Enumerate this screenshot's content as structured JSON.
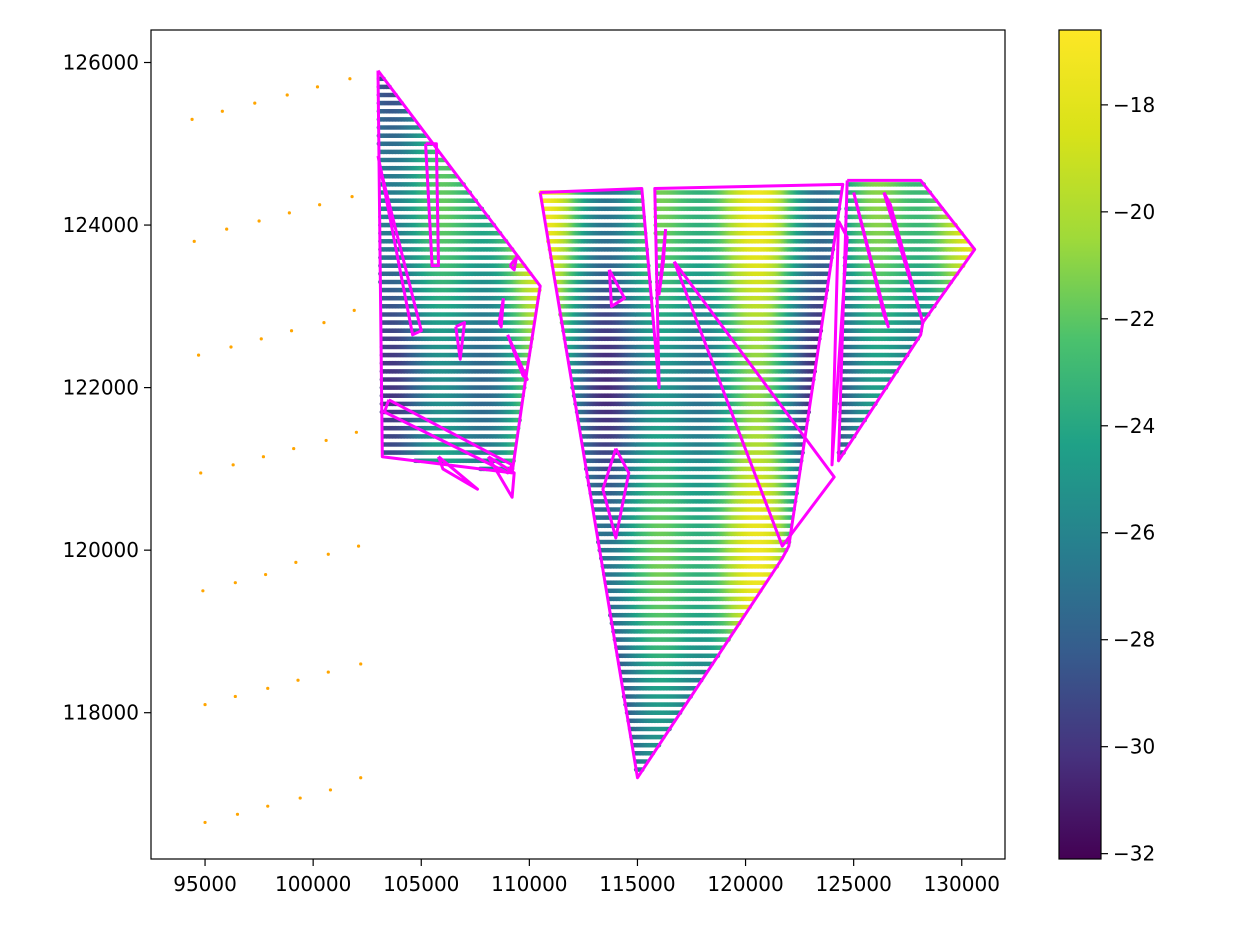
{
  "chart_data": {
    "type": "scatter",
    "title": "",
    "xlabel": "",
    "ylabel": "",
    "xlim": [
      92500,
      132000
    ],
    "ylim": [
      116200,
      126400
    ],
    "grid": false,
    "x_ticks": [
      95000,
      100000,
      105000,
      110000,
      115000,
      120000,
      125000,
      130000
    ],
    "x_tick_labels": [
      "95000",
      "100000",
      "105000",
      "110000",
      "115000",
      "120000",
      "125000",
      "130000"
    ],
    "y_ticks": [
      118000,
      120000,
      122000,
      124000,
      126000
    ],
    "y_tick_labels": [
      "118000",
      "120000",
      "122000",
      "124000",
      "126000"
    ],
    "colorbar": {
      "colormap": "viridis",
      "range": [
        -32.1,
        -16.6
      ],
      "ticks": [
        -32,
        -30,
        -28,
        -26,
        -24,
        -22,
        -20,
        -18
      ],
      "tick_labels": [
        "−32",
        "−30",
        "−28",
        "−26",
        "−24",
        "−22",
        "−20",
        "−18"
      ]
    },
    "series": [
      {
        "kind": "points",
        "color": "#ffa500",
        "rows": [
          [
            [
              94400,
              125300
            ],
            [
              95800,
              125400
            ],
            [
              97300,
              125500
            ],
            [
              98800,
              125600
            ],
            [
              100200,
              125700
            ],
            [
              101700,
              125800
            ]
          ],
          [
            [
              94500,
              123800
            ],
            [
              96000,
              123950
            ],
            [
              97500,
              124050
            ],
            [
              98900,
              124150
            ],
            [
              100300,
              124250
            ],
            [
              101800,
              124350
            ]
          ],
          [
            [
              94700,
              122400
            ],
            [
              96200,
              122500
            ],
            [
              97600,
              122600
            ],
            [
              99000,
              122700
            ],
            [
              100500,
              122800
            ],
            [
              101900,
              122950
            ]
          ],
          [
            [
              94800,
              120950
            ],
            [
              96300,
              121050
            ],
            [
              97700,
              121150
            ],
            [
              99100,
              121250
            ],
            [
              100600,
              121350
            ],
            [
              102000,
              121450
            ]
          ],
          [
            [
              94900,
              119500
            ],
            [
              96400,
              119600
            ],
            [
              97800,
              119700
            ],
            [
              99200,
              119850
            ],
            [
              100700,
              119950
            ],
            [
              102100,
              120050
            ]
          ],
          [
            [
              95000,
              118100
            ],
            [
              96400,
              118200
            ],
            [
              97900,
              118300
            ],
            [
              99300,
              118400
            ],
            [
              100700,
              118500
            ],
            [
              102200,
              118600
            ]
          ],
          [
            [
              95000,
              116650
            ],
            [
              96500,
              116750
            ],
            [
              97900,
              116850
            ],
            [
              99400,
              116950
            ],
            [
              100800,
              117050
            ],
            [
              102200,
              117200
            ]
          ]
        ]
      },
      {
        "kind": "survey-lines",
        "colormap": "viridis",
        "value_range": [
          -32,
          -16.6
        ]
      },
      {
        "kind": "outlines",
        "color": "#ff00ff",
        "polygons": [
          [
            [
              103000,
              125900
            ],
            [
              110500,
              123250
            ],
            [
              109800,
              122050
            ],
            [
              109200,
              120950
            ],
            [
              103200,
              121150
            ],
            [
              103000,
              125900
            ]
          ],
          [
            [
              105200,
              125000
            ],
            [
              105500,
              123500
            ],
            [
              105800,
              123500
            ],
            [
              105700,
              125000
            ],
            [
              105200,
              125000
            ]
          ],
          [
            [
              103000,
              124850
            ],
            [
              103200,
              124600
            ],
            [
              105000,
              122700
            ],
            [
              104600,
              122650
            ],
            [
              103000,
              124850
            ]
          ],
          [
            [
              103500,
              121850
            ],
            [
              109200,
              121050
            ],
            [
              109000,
              120950
            ],
            [
              103300,
              121700
            ],
            [
              103500,
              121850
            ]
          ],
          [
            [
              105800,
              121150
            ],
            [
              107600,
              120750
            ],
            [
              106000,
              121000
            ],
            [
              105800,
              121150
            ]
          ],
          [
            [
              106600,
              122750
            ],
            [
              107000,
              122800
            ],
            [
              106800,
              122350
            ],
            [
              106600,
              122750
            ]
          ],
          [
            [
              108800,
              123100
            ],
            [
              108700,
              122750
            ],
            [
              108600,
              122800
            ],
            [
              108800,
              123100
            ]
          ],
          [
            [
              109100,
              123500
            ],
            [
              109400,
              123600
            ],
            [
              109300,
              123450
            ],
            [
              109100,
              123500
            ]
          ],
          [
            [
              109000,
              122650
            ],
            [
              109700,
              122150
            ],
            [
              109900,
              122100
            ],
            [
              109000,
              122650
            ]
          ],
          [
            [
              108100,
              121150
            ],
            [
              109300,
              120950
            ],
            [
              109200,
              120650
            ],
            [
              108100,
              121150
            ]
          ],
          [
            [
              110500,
              124400
            ],
            [
              115200,
              124450
            ],
            [
              116000,
              122000
            ],
            [
              115800,
              124450
            ],
            [
              124500,
              124500
            ],
            [
              122000,
              120050
            ],
            [
              121700,
              119900
            ],
            [
              115000,
              117200
            ],
            [
              110500,
              124400
            ]
          ],
          [
            [
              113700,
              123450
            ],
            [
              114400,
              123100
            ],
            [
              113800,
              123000
            ],
            [
              113700,
              123450
            ]
          ],
          [
            [
              114000,
              121250
            ],
            [
              114600,
              120950
            ],
            [
              114000,
              120150
            ],
            [
              113400,
              120750
            ],
            [
              114000,
              121250
            ]
          ],
          [
            [
              116300,
              123950
            ],
            [
              116200,
              123550
            ],
            [
              116000,
              123150
            ],
            [
              116300,
              123950
            ]
          ],
          [
            [
              116700,
              123550
            ],
            [
              121700,
              120050
            ],
            [
              124100,
              120900
            ],
            [
              116700,
              123550
            ]
          ],
          [
            [
              124300,
              124050
            ],
            [
              124700,
              123850
            ],
            [
              124000,
              121050
            ],
            [
              124300,
              124050
            ]
          ],
          [
            [
              124700,
              124550
            ],
            [
              128100,
              124550
            ],
            [
              130600,
              123700
            ],
            [
              128200,
              122800
            ],
            [
              128100,
              122650
            ],
            [
              124300,
              121100
            ],
            [
              124700,
              124550
            ]
          ],
          [
            [
              125000,
              124400
            ],
            [
              126600,
              122750
            ],
            [
              126400,
              122900
            ],
            [
              125000,
              124400
            ]
          ],
          [
            [
              126400,
              124400
            ],
            [
              126700,
              124250
            ],
            [
              128200,
              122800
            ],
            [
              126400,
              124400
            ]
          ]
        ]
      }
    ]
  }
}
